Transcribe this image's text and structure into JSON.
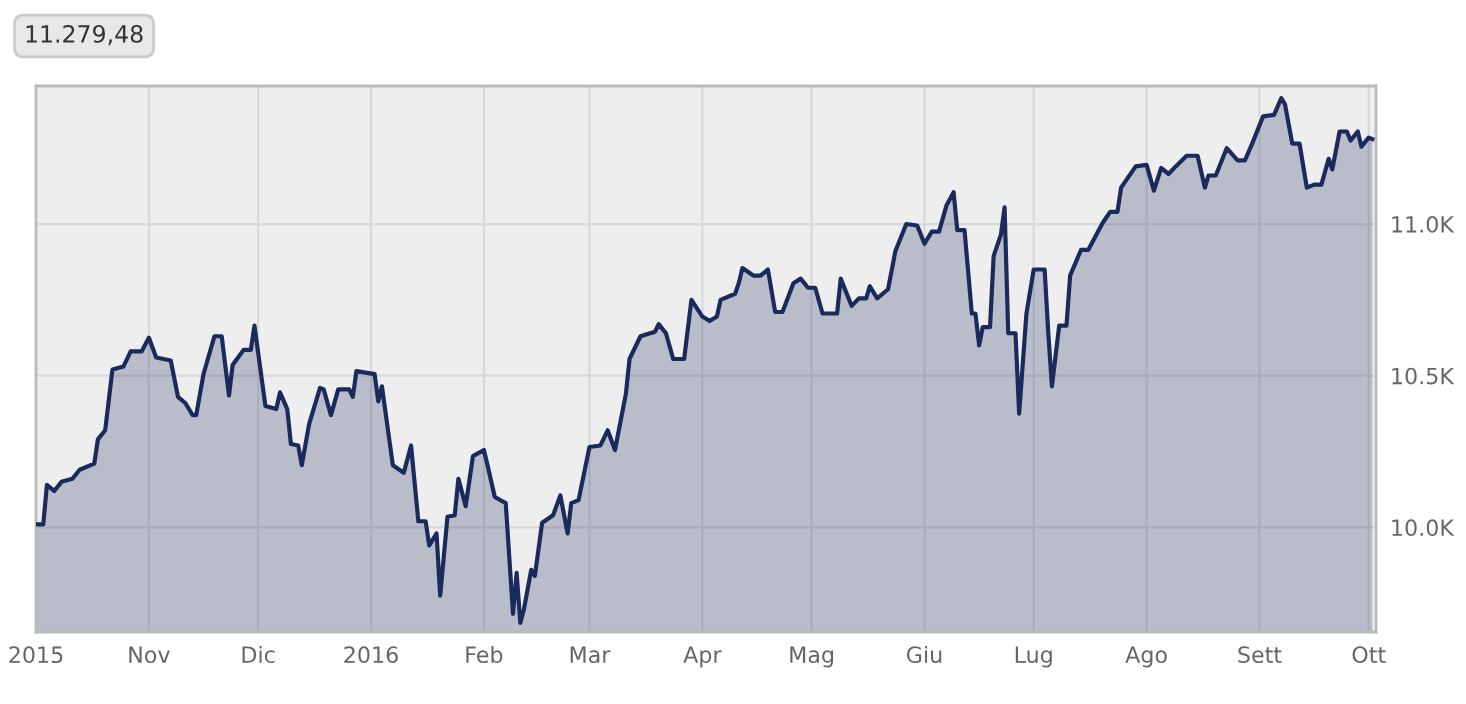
{
  "chart_data": {
    "type": "area",
    "annotations": [
      "11.279,48"
    ],
    "x": [
      "2015-10-01",
      "2015-10-03",
      "2015-10-04",
      "2015-10-06",
      "2015-10-08",
      "2015-10-11",
      "2015-10-13",
      "2015-10-17",
      "2015-10-18",
      "2015-10-20",
      "2015-10-22",
      "2015-10-25",
      "2015-10-27",
      "2015-10-30",
      "2015-11-01",
      "2015-11-03",
      "2015-11-07",
      "2015-11-09",
      "2015-11-11",
      "2015-11-13",
      "2015-11-14",
      "2015-11-16",
      "2015-11-19",
      "2015-11-21",
      "2015-11-23",
      "2015-11-24",
      "2015-11-27",
      "2015-11-29",
      "2015-11-30",
      "2015-12-03",
      "2015-12-06",
      "2015-12-07",
      "2015-12-09",
      "2015-12-10",
      "2015-12-12",
      "2015-12-13",
      "2015-12-15",
      "2015-12-18",
      "2015-12-19",
      "2015-12-21",
      "2015-12-23",
      "2015-12-26",
      "2015-12-27",
      "2015-12-28",
      "2016-01-02",
      "2016-01-03",
      "2016-01-04",
      "2016-01-07",
      "2016-01-10",
      "2016-01-12",
      "2016-01-14",
      "2016-01-16",
      "2016-01-17",
      "2016-01-19",
      "2016-01-20",
      "2016-01-22",
      "2016-01-24",
      "2016-01-25",
      "2016-01-27",
      "2016-01-29",
      "2016-02-01",
      "2016-02-02",
      "2016-02-04",
      "2016-02-07",
      "2016-02-09",
      "2016-02-10",
      "2016-02-11",
      "2016-02-12",
      "2016-02-14",
      "2016-02-15",
      "2016-02-17",
      "2016-02-20",
      "2016-02-22",
      "2016-02-24",
      "2016-02-25",
      "2016-02-27",
      "2016-03-01",
      "2016-03-04",
      "2016-03-06",
      "2016-03-08",
      "2016-03-11",
      "2016-03-12",
      "2016-03-15",
      "2016-03-19",
      "2016-03-20",
      "2016-03-22",
      "2016-03-24",
      "2016-03-27",
      "2016-03-29",
      "2016-04-01",
      "2016-04-03",
      "2016-04-05",
      "2016-04-06",
      "2016-04-10",
      "2016-04-11",
      "2016-04-12",
      "2016-04-15",
      "2016-04-17",
      "2016-04-19",
      "2016-04-21",
      "2016-04-23",
      "2016-04-26",
      "2016-04-28",
      "2016-04-30",
      "2016-05-02",
      "2016-05-04",
      "2016-05-08",
      "2016-05-09",
      "2016-05-12",
      "2016-05-14",
      "2016-05-16",
      "2016-05-17",
      "2016-05-19",
      "2016-05-22",
      "2016-05-24",
      "2016-05-27",
      "2016-05-30",
      "2016-06-01",
      "2016-06-03",
      "2016-06-05",
      "2016-06-07",
      "2016-06-09",
      "2016-06-10",
      "2016-06-12",
      "2016-06-14",
      "2016-06-15",
      "2016-06-16",
      "2016-06-17",
      "2016-06-19",
      "2016-06-20",
      "2016-06-22",
      "2016-06-23",
      "2016-06-24",
      "2016-06-26",
      "2016-06-27",
      "2016-06-29",
      "2016-07-01",
      "2016-07-04",
      "2016-07-05",
      "2016-07-06",
      "2016-07-08",
      "2016-07-10",
      "2016-07-11",
      "2016-07-14",
      "2016-07-16",
      "2016-07-20",
      "2016-07-22",
      "2016-07-24",
      "2016-07-25",
      "2016-07-29",
      "2016-08-01",
      "2016-08-03",
      "2016-08-05",
      "2016-08-07",
      "2016-08-09",
      "2016-08-12",
      "2016-08-15",
      "2016-08-17",
      "2016-08-18",
      "2016-08-20",
      "2016-08-23",
      "2016-08-26",
      "2016-08-28",
      "2016-08-30",
      "2016-09-02",
      "2016-09-05",
      "2016-09-07",
      "2016-09-08",
      "2016-09-10",
      "2016-09-12",
      "2016-09-14",
      "2016-09-16",
      "2016-09-18",
      "2016-09-20",
      "2016-09-21",
      "2016-09-23",
      "2016-09-25",
      "2016-09-26",
      "2016-09-28",
      "2016-09-29",
      "2016-10-01",
      "2016-10-02"
    ],
    "series": [
      {
        "color": "#1b2a5c",
        "values": [
          10010,
          10010,
          10140,
          10120,
          10150,
          10160,
          10190,
          10210,
          10290,
          10320,
          10520,
          10530,
          10580,
          10580,
          10625,
          10560,
          10550,
          10430,
          10410,
          10370,
          10370,
          10505,
          10630,
          10630,
          10435,
          10535,
          10585,
          10585,
          10665,
          10400,
          10390,
          10445,
          10390,
          10275,
          10270,
          10205,
          10340,
          10460,
          10455,
          10370,
          10455,
          10455,
          10430,
          10515,
          10505,
          10415,
          10465,
          10205,
          10180,
          10270,
          10020,
          10020,
          9940,
          9980,
          9775,
          10035,
          10040,
          10160,
          10070,
          10235,
          10255,
          10205,
          10100,
          10080,
          9715,
          9850,
          9685,
          9730,
          9860,
          9840,
          10015,
          10040,
          10105,
          9980,
          10080,
          10090,
          10265,
          10270,
          10320,
          10255,
          10440,
          10555,
          10630,
          10645,
          10670,
          10640,
          10555,
          10555,
          10750,
          10695,
          10680,
          10695,
          10750,
          10770,
          10805,
          10855,
          10830,
          10830,
          10850,
          10710,
          10710,
          10805,
          10820,
          10790,
          10790,
          10705,
          10705,
          10820,
          10730,
          10755,
          10755,
          10795,
          10755,
          10785,
          10910,
          11000,
          10995,
          10935,
          10975,
          10975,
          11060,
          11105,
          10980,
          10980,
          10705,
          10705,
          10600,
          10660,
          10660,
          10895,
          10965,
          11055,
          10640,
          10640,
          10375,
          10705,
          10850,
          10850,
          10640,
          10465,
          10665,
          10665,
          10830,
          10915,
          10915,
          11005,
          11040,
          11040,
          11120,
          11190,
          11195,
          11110,
          11185,
          11165,
          11190,
          11225,
          11225,
          11120,
          11160,
          11160,
          11250,
          11210,
          11210,
          11265,
          11355,
          11360,
          11415,
          11395,
          11265,
          11265,
          11120,
          11130,
          11130,
          11215,
          11180,
          11305,
          11305,
          11275,
          11305,
          11255,
          11285,
          11280
        ]
      }
    ],
    "xlim": [
      "2015-10-01",
      "2016-10-03"
    ],
    "xticks": [
      {
        "value": "2015-10-01",
        "label": "2015"
      },
      {
        "value": "2015-11-01",
        "label": "Nov"
      },
      {
        "value": "2015-12-01",
        "label": "Dic"
      },
      {
        "value": "2016-01-01",
        "label": "2016"
      },
      {
        "value": "2016-02-01",
        "label": "Feb"
      },
      {
        "value": "2016-03-01",
        "label": "Mar"
      },
      {
        "value": "2016-04-01",
        "label": "Apr"
      },
      {
        "value": "2016-05-01",
        "label": "Mag"
      },
      {
        "value": "2016-06-01",
        "label": "Giu"
      },
      {
        "value": "2016-07-01",
        "label": "Lug"
      },
      {
        "value": "2016-08-01",
        "label": "Ago"
      },
      {
        "value": "2016-09-01",
        "label": "Sett"
      },
      {
        "value": "2016-10-01",
        "label": "Ott"
      }
    ],
    "ylim": [
      9655,
      11455
    ],
    "yticks": [
      {
        "value": 10000,
        "label": "10.0K"
      },
      {
        "value": 10500,
        "label": "10.5K"
      },
      {
        "value": 11000,
        "label": "11.0K"
      }
    ],
    "grid": true
  }
}
